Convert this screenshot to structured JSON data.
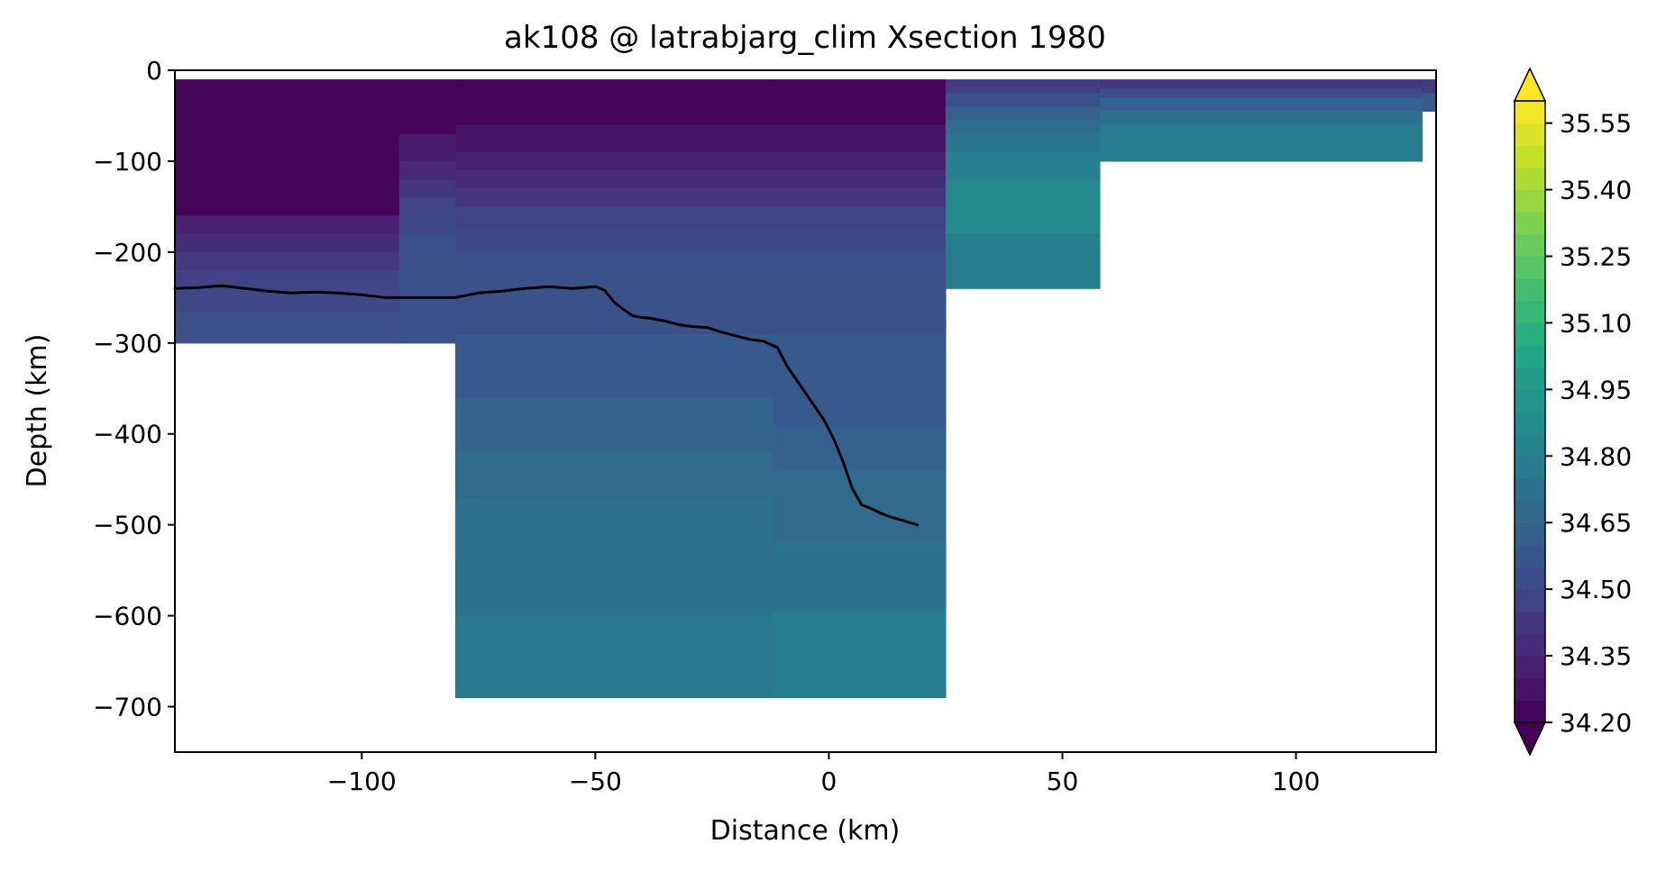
{
  "chart_data": {
    "type": "heatmap",
    "title": "ak108 @ latrabjarg_clim Xsection 1980",
    "xlabel": "Distance (km)",
    "ylabel": "Depth (km)",
    "xlim": [
      -140,
      130
    ],
    "ylim": [
      -750,
      0
    ],
    "x_ticks": [
      -100,
      -50,
      0,
      50,
      100
    ],
    "x_tick_labels": [
      "−100",
      "−50",
      "0",
      "50",
      "100"
    ],
    "y_ticks": [
      0,
      -100,
      -200,
      -300,
      -400,
      -500,
      -600,
      -700
    ],
    "y_tick_labels": [
      "0",
      "−100",
      "−200",
      "−300",
      "−400",
      "−500",
      "−600",
      "−700"
    ],
    "grid": false,
    "colormap": "viridis",
    "colorbar": {
      "min": 34.2,
      "max": 35.6,
      "levels": 28,
      "extend": "both",
      "ticks": [
        34.2,
        34.35,
        34.5,
        34.65,
        34.8,
        34.95,
        35.1,
        35.25,
        35.4,
        35.55
      ],
      "tick_labels": [
        "34.20",
        "34.35",
        "34.50",
        "34.65",
        "34.80",
        "34.95",
        "35.10",
        "35.25",
        "35.40",
        "35.55"
      ]
    },
    "columns": [
      {
        "x0": -140,
        "x1": -92,
        "bottom": -300,
        "bands": [
          [
            -10,
            -160,
            34.22
          ],
          [
            -160,
            -180,
            34.33
          ],
          [
            -180,
            -200,
            34.38
          ],
          [
            -200,
            -220,
            34.43
          ],
          [
            -220,
            -240,
            34.47
          ],
          [
            -240,
            -265,
            34.5
          ],
          [
            -265,
            -300,
            34.54
          ]
        ]
      },
      {
        "x0": -92,
        "x1": -80,
        "bottom": -300,
        "bands": [
          [
            -10,
            -70,
            34.22
          ],
          [
            -70,
            -100,
            34.3
          ],
          [
            -100,
            -120,
            34.36
          ],
          [
            -120,
            -140,
            34.42
          ],
          [
            -140,
            -160,
            34.47
          ],
          [
            -160,
            -180,
            34.5
          ],
          [
            -180,
            -300,
            34.55
          ]
        ]
      },
      {
        "x0": -80,
        "x1": -12,
        "bottom": -690,
        "bands": [
          [
            -10,
            -60,
            34.22
          ],
          [
            -60,
            -90,
            34.28
          ],
          [
            -90,
            -110,
            34.33
          ],
          [
            -110,
            -130,
            34.38
          ],
          [
            -130,
            -150,
            34.42
          ],
          [
            -150,
            -175,
            34.47
          ],
          [
            -175,
            -200,
            34.5
          ],
          [
            -200,
            -290,
            34.55
          ],
          [
            -290,
            -360,
            34.6
          ],
          [
            -360,
            -420,
            34.65
          ],
          [
            -420,
            -470,
            34.68
          ],
          [
            -470,
            -540,
            34.71
          ],
          [
            -540,
            -600,
            34.74
          ],
          [
            -600,
            -690,
            34.77
          ]
        ]
      },
      {
        "x0": -12,
        "x1": 25,
        "bottom": -690,
        "bands": [
          [
            -10,
            -60,
            34.22
          ],
          [
            -60,
            -90,
            34.28
          ],
          [
            -90,
            -110,
            34.33
          ],
          [
            -110,
            -130,
            34.38
          ],
          [
            -130,
            -150,
            34.42
          ],
          [
            -150,
            -175,
            34.47
          ],
          [
            -175,
            -200,
            34.5
          ],
          [
            -200,
            -290,
            34.55
          ],
          [
            -290,
            -390,
            34.59
          ],
          [
            -390,
            -440,
            34.63
          ],
          [
            -440,
            -520,
            34.68
          ],
          [
            -520,
            -595,
            34.74
          ],
          [
            -595,
            -690,
            34.8
          ]
        ]
      },
      {
        "x0": 25,
        "x1": 58,
        "bottom": -240,
        "bands": [
          [
            -10,
            -25,
            34.45
          ],
          [
            -25,
            -40,
            34.55
          ],
          [
            -40,
            -55,
            34.63
          ],
          [
            -55,
            -70,
            34.7
          ],
          [
            -70,
            -90,
            34.75
          ],
          [
            -90,
            -120,
            34.79
          ],
          [
            -120,
            -180,
            34.86
          ],
          [
            -180,
            -240,
            34.8
          ]
        ]
      },
      {
        "x0": 58,
        "x1": 127,
        "bottom": -100,
        "bands": [
          [
            -10,
            -20,
            34.42
          ],
          [
            -20,
            -30,
            34.53
          ],
          [
            -30,
            -45,
            34.63
          ],
          [
            -45,
            -60,
            34.72
          ],
          [
            -60,
            -100,
            34.79
          ]
        ]
      },
      {
        "x0": 127,
        "x1": 130,
        "bottom": -45,
        "bands": [
          [
            -10,
            -25,
            34.45
          ],
          [
            -25,
            -45,
            34.6
          ]
        ]
      }
    ],
    "series": [
      {
        "type": "line",
        "color": "#000000",
        "x": [
          -140,
          -135,
          -130,
          -125,
          -120,
          -115,
          -110,
          -105,
          -100,
          -95,
          -90,
          -85,
          -80,
          -75,
          -70,
          -65,
          -60,
          -55,
          -50,
          -48,
          -46,
          -44,
          -42,
          -40,
          -38,
          -35,
          -32,
          -29,
          -26,
          -23,
          -20,
          -17,
          -14,
          -11,
          -9,
          -7,
          -5,
          -3,
          -1,
          1,
          3,
          5,
          7,
          9,
          11,
          13,
          15,
          17,
          19
        ],
        "y": [
          -240,
          -239,
          -237,
          -240,
          -243,
          -245,
          -244,
          -245,
          -247,
          -250,
          -250,
          -250,
          -250,
          -245,
          -243,
          -240,
          -238,
          -240,
          -238,
          -242,
          -255,
          -263,
          -270,
          -272,
          -273,
          -276,
          -280,
          -282,
          -283,
          -288,
          -292,
          -296,
          -298,
          -305,
          -325,
          -340,
          -355,
          -370,
          -385,
          -405,
          -430,
          -460,
          -478,
          -482,
          -487,
          -491,
          -494,
          -497,
          -500
        ]
      }
    ]
  }
}
